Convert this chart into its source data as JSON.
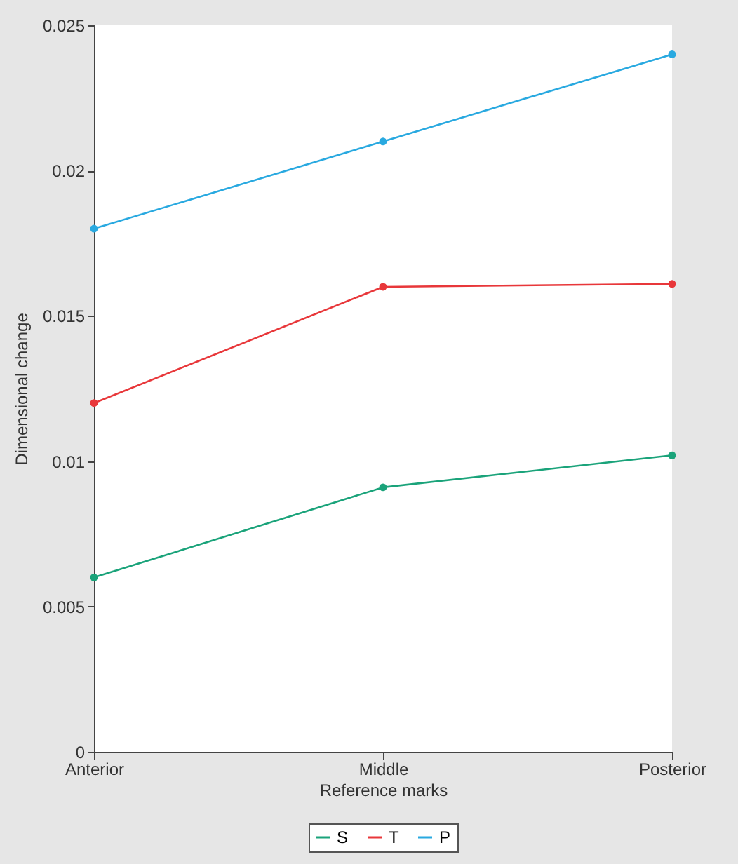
{
  "chart_data": {
    "type": "line",
    "xlabel": "Reference marks",
    "ylabel": "Dimensional change",
    "categories": [
      "Anterior",
      "Middle",
      "Posterior"
    ],
    "series": [
      {
        "name": "S",
        "color": "#1aa37a",
        "values": [
          0.006,
          0.0091,
          0.0102
        ]
      },
      {
        "name": "T",
        "color": "#e8373a",
        "values": [
          0.012,
          0.016,
          0.0161
        ]
      },
      {
        "name": "P",
        "color": "#29a9e0",
        "values": [
          0.018,
          0.021,
          0.024
        ]
      }
    ],
    "ylim": [
      0,
      0.025
    ],
    "yticks": [
      0,
      0.005,
      0.01,
      0.015,
      0.02,
      0.025
    ],
    "grid": false,
    "legend": "bottom",
    "marker": "circle",
    "line_style": "solid"
  }
}
